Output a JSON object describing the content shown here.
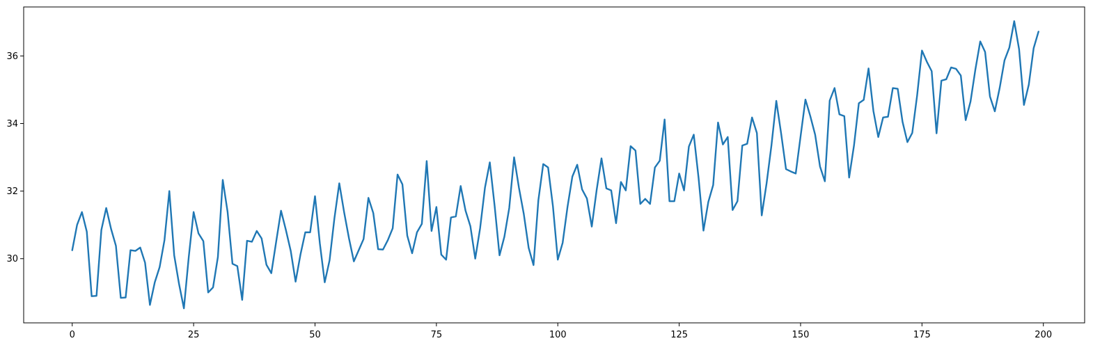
{
  "chart_data": {
    "type": "line",
    "title": "",
    "xlabel": "",
    "ylabel": "",
    "xlim": [
      -10,
      208.5
    ],
    "ylim": [
      28.1,
      37.45
    ],
    "x_ticks": [
      0,
      25,
      50,
      75,
      100,
      125,
      150,
      175,
      200
    ],
    "x_tick_labels": [
      "0",
      "25",
      "50",
      "75",
      "100",
      "125",
      "150",
      "175",
      "200"
    ],
    "y_ticks": [
      30,
      32,
      34,
      36
    ],
    "y_tick_labels": [
      "30",
      "32",
      "34",
      "36"
    ],
    "grid": false,
    "line_color": "#1f77b4",
    "series": [
      {
        "x_start": 0,
        "x_step": 1,
        "values": [
          30.25,
          31.0,
          31.38,
          30.8,
          28.89,
          28.9,
          30.85,
          31.5,
          30.88,
          30.38,
          28.84,
          28.85,
          30.25,
          30.23,
          30.33,
          29.88,
          28.63,
          29.3,
          29.75,
          30.55,
          32.0,
          30.1,
          29.25,
          28.53,
          30.05,
          31.38,
          30.75,
          30.52,
          29.0,
          29.15,
          30.05,
          32.33,
          31.38,
          29.85,
          29.78,
          28.78,
          30.53,
          30.5,
          30.82,
          30.6,
          29.82,
          29.57,
          30.5,
          31.42,
          30.85,
          30.23,
          29.32,
          30.12,
          30.78,
          30.78,
          31.85,
          30.45,
          29.3,
          29.95,
          31.2,
          32.23,
          31.37,
          30.6,
          29.92,
          30.25,
          30.58,
          31.8,
          31.35,
          30.28,
          30.27,
          30.55,
          30.9,
          32.49,
          32.2,
          30.68,
          30.16,
          30.78,
          31.03,
          32.89,
          30.82,
          31.53,
          30.12,
          29.97,
          31.22,
          31.25,
          32.15,
          31.42,
          30.96,
          30.0,
          30.9,
          32.1,
          32.85,
          31.55,
          30.1,
          30.65,
          31.5,
          33.0,
          32.1,
          31.32,
          30.32,
          29.81,
          31.73,
          32.8,
          32.7,
          31.55,
          29.97,
          30.47,
          31.53,
          32.43,
          32.78,
          32.05,
          31.78,
          30.95,
          32.03,
          32.97,
          32.08,
          32.02,
          31.05,
          32.27,
          32.02,
          33.33,
          33.2,
          31.62,
          31.77,
          31.62,
          32.7,
          32.9,
          34.12,
          31.7,
          31.7,
          32.52,
          32.02,
          33.32,
          33.67,
          32.38,
          30.83,
          31.68,
          32.18,
          34.03,
          33.38,
          33.6,
          31.44,
          31.7,
          33.35,
          33.4,
          34.18,
          33.72,
          31.28,
          32.23,
          33.35,
          34.67,
          33.7,
          32.65,
          32.58,
          32.52,
          33.62,
          34.71,
          34.22,
          33.67,
          32.73,
          32.29,
          34.68,
          35.05,
          34.27,
          34.22,
          32.4,
          33.35,
          34.6,
          34.7,
          35.63,
          34.37,
          33.6,
          34.18,
          34.2,
          35.05,
          35.03,
          34.05,
          33.45,
          33.72,
          34.83,
          36.16,
          35.83,
          35.55,
          33.71,
          35.27,
          35.31,
          35.66,
          35.62,
          35.42,
          34.1,
          34.65,
          35.6,
          36.43,
          36.12,
          34.8,
          34.36,
          35.05,
          35.87,
          36.25,
          37.03,
          36.2,
          34.55,
          35.15,
          36.23,
          36.72
        ]
      }
    ]
  }
}
